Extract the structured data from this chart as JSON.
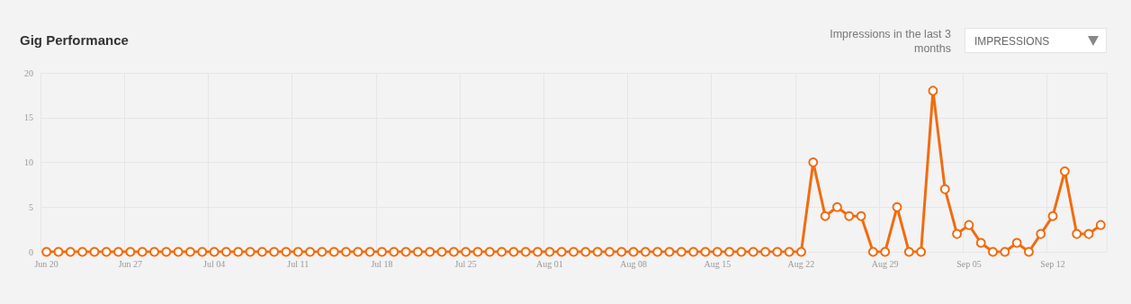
{
  "chart_data": {
    "type": "line",
    "title": "Gig Performance",
    "annotations": [
      "Impressions in the last 3 months",
      "IMPRESSIONS"
    ],
    "categories": [
      "Jun 20",
      null,
      null,
      null,
      null,
      null,
      null,
      "Jun 27",
      null,
      null,
      null,
      null,
      null,
      null,
      "Jul 04",
      null,
      null,
      null,
      null,
      null,
      null,
      "Jul 11",
      null,
      null,
      null,
      null,
      null,
      null,
      "Jul 18",
      null,
      null,
      null,
      null,
      null,
      null,
      "Jul 25",
      null,
      null,
      null,
      null,
      null,
      null,
      "Aug 01",
      null,
      null,
      null,
      null,
      null,
      null,
      "Aug 08",
      null,
      null,
      null,
      null,
      null,
      null,
      "Aug 15",
      null,
      null,
      null,
      null,
      null,
      null,
      "Aug 22",
      null,
      null,
      null,
      null,
      null,
      null,
      "Aug 29",
      null,
      null,
      null,
      null,
      null,
      null,
      "Sep 05",
      null,
      null,
      null,
      null,
      null,
      null,
      "Sep 12",
      null,
      null,
      null,
      null
    ],
    "series": [
      {
        "color": "#f26b0f",
        "values": [
          0,
          0,
          0,
          0,
          0,
          0,
          0,
          0,
          0,
          0,
          0,
          0,
          0,
          0,
          0,
          0,
          0,
          0,
          0,
          0,
          0,
          0,
          0,
          0,
          0,
          0,
          0,
          0,
          0,
          0,
          0,
          0,
          0,
          0,
          0,
          0,
          0,
          0,
          0,
          0,
          0,
          0,
          0,
          0,
          0,
          0,
          0,
          0,
          0,
          0,
          0,
          0,
          0,
          0,
          0,
          0,
          0,
          0,
          0,
          0,
          0,
          0,
          0,
          0,
          10,
          4,
          5,
          4,
          4,
          0,
          0,
          5,
          0,
          0,
          18,
          7,
          2,
          3,
          1,
          0,
          0,
          1,
          0,
          2,
          4,
          9,
          2,
          2,
          3
        ]
      }
    ],
    "ylim": [
      0,
      20
    ],
    "yticks": [
      0,
      5,
      10,
      15,
      20
    ],
    "grid": true,
    "marker": "circle",
    "line_style": "solid"
  }
}
